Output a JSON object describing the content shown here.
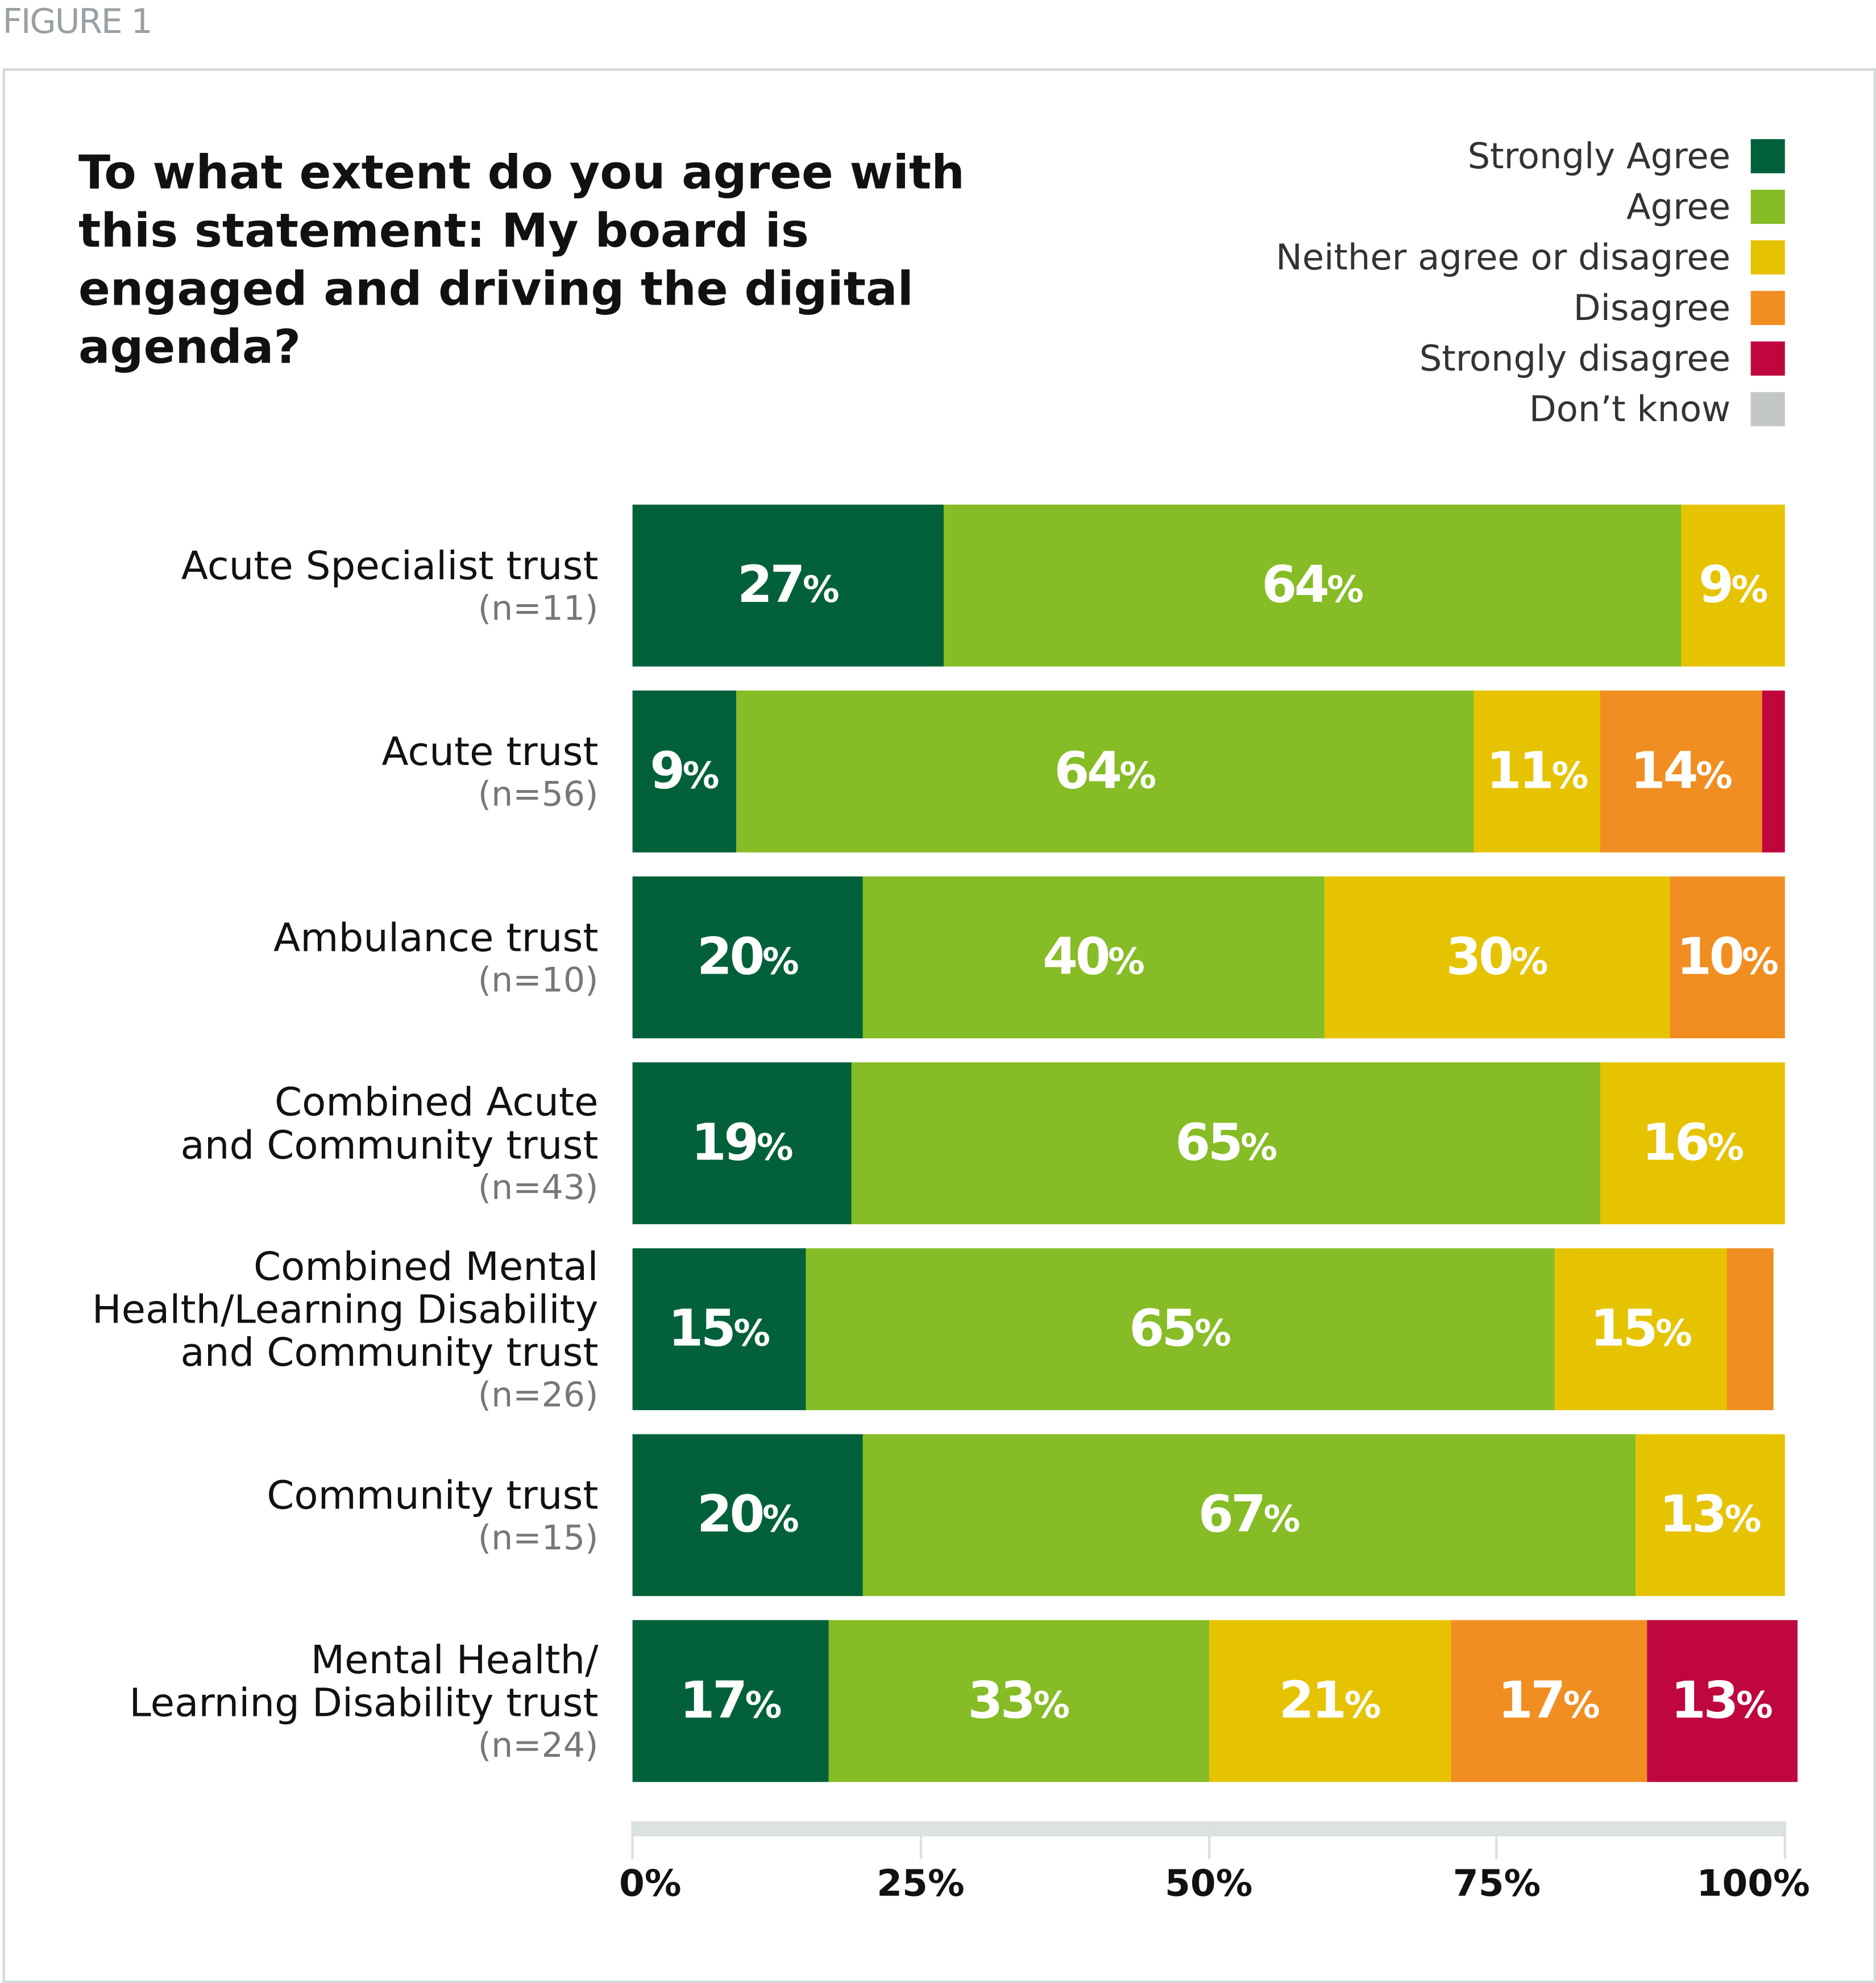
{
  "figure_label": "FIGURE 1",
  "chart_data": {
    "type": "bar",
    "orientation": "horizontal",
    "stacked": true,
    "title": "To what extent do you agree with this statement: My board is engaged and driving the digital agenda?",
    "xlim": [
      0,
      100
    ],
    "xticks": [
      "0%",
      "25%",
      "50%",
      "75%",
      "100%"
    ],
    "legend_position": "top-right",
    "series": [
      {
        "name": "Strongly Agree",
        "color": "#02613a"
      },
      {
        "name": "Agree",
        "color": "#86bc25"
      },
      {
        "name": "Neither agree or disagree",
        "color": "#e6c300"
      },
      {
        "name": "Disagree",
        "color": "#f18e21"
      },
      {
        "name": "Strongly disagree",
        "color": "#c0063f"
      },
      {
        "name": "Don’t know",
        "color": "#c3c6c7"
      }
    ],
    "categories": [
      {
        "label": [
          "Acute Specialist trust"
        ],
        "n": "(n=11)",
        "values": [
          27,
          64,
          9,
          0,
          0,
          0
        ],
        "labels": [
          "27",
          "64",
          "9",
          "",
          "",
          ""
        ]
      },
      {
        "label": [
          "Acute trust"
        ],
        "n": "(n=56)",
        "values": [
          9,
          64,
          11,
          14,
          2,
          0
        ],
        "labels": [
          "9",
          "64",
          "11",
          "14",
          "",
          ""
        ]
      },
      {
        "label": [
          "Ambulance trust"
        ],
        "n": "(n=10)",
        "values": [
          20,
          40,
          30,
          10,
          0,
          0
        ],
        "labels": [
          "20",
          "40",
          "30",
          "10",
          "",
          ""
        ]
      },
      {
        "label": [
          "Combined Acute",
          "and Community trust"
        ],
        "n": "(n=43)",
        "values": [
          19,
          65,
          16,
          0,
          0,
          0
        ],
        "labels": [
          "19",
          "65",
          "16",
          "",
          "",
          ""
        ]
      },
      {
        "label": [
          "Combined Mental",
          "Health/Learning Disability",
          "and Community trust"
        ],
        "n": "(n=26)",
        "values": [
          15,
          65,
          15,
          4,
          0,
          0
        ],
        "labels": [
          "15",
          "65",
          "15",
          "",
          "",
          ""
        ]
      },
      {
        "label": [
          "Community trust"
        ],
        "n": "(n=15)",
        "values": [
          20,
          67,
          13,
          0,
          0,
          0
        ],
        "labels": [
          "20",
          "67",
          "13",
          "",
          "",
          ""
        ]
      },
      {
        "label": [
          "Mental Health/",
          "Learning Disability trust"
        ],
        "n": "(n=24)",
        "values": [
          17,
          33,
          21,
          17,
          13,
          0
        ],
        "labels": [
          "17",
          "33",
          "21",
          "17",
          "13",
          ""
        ]
      }
    ]
  }
}
